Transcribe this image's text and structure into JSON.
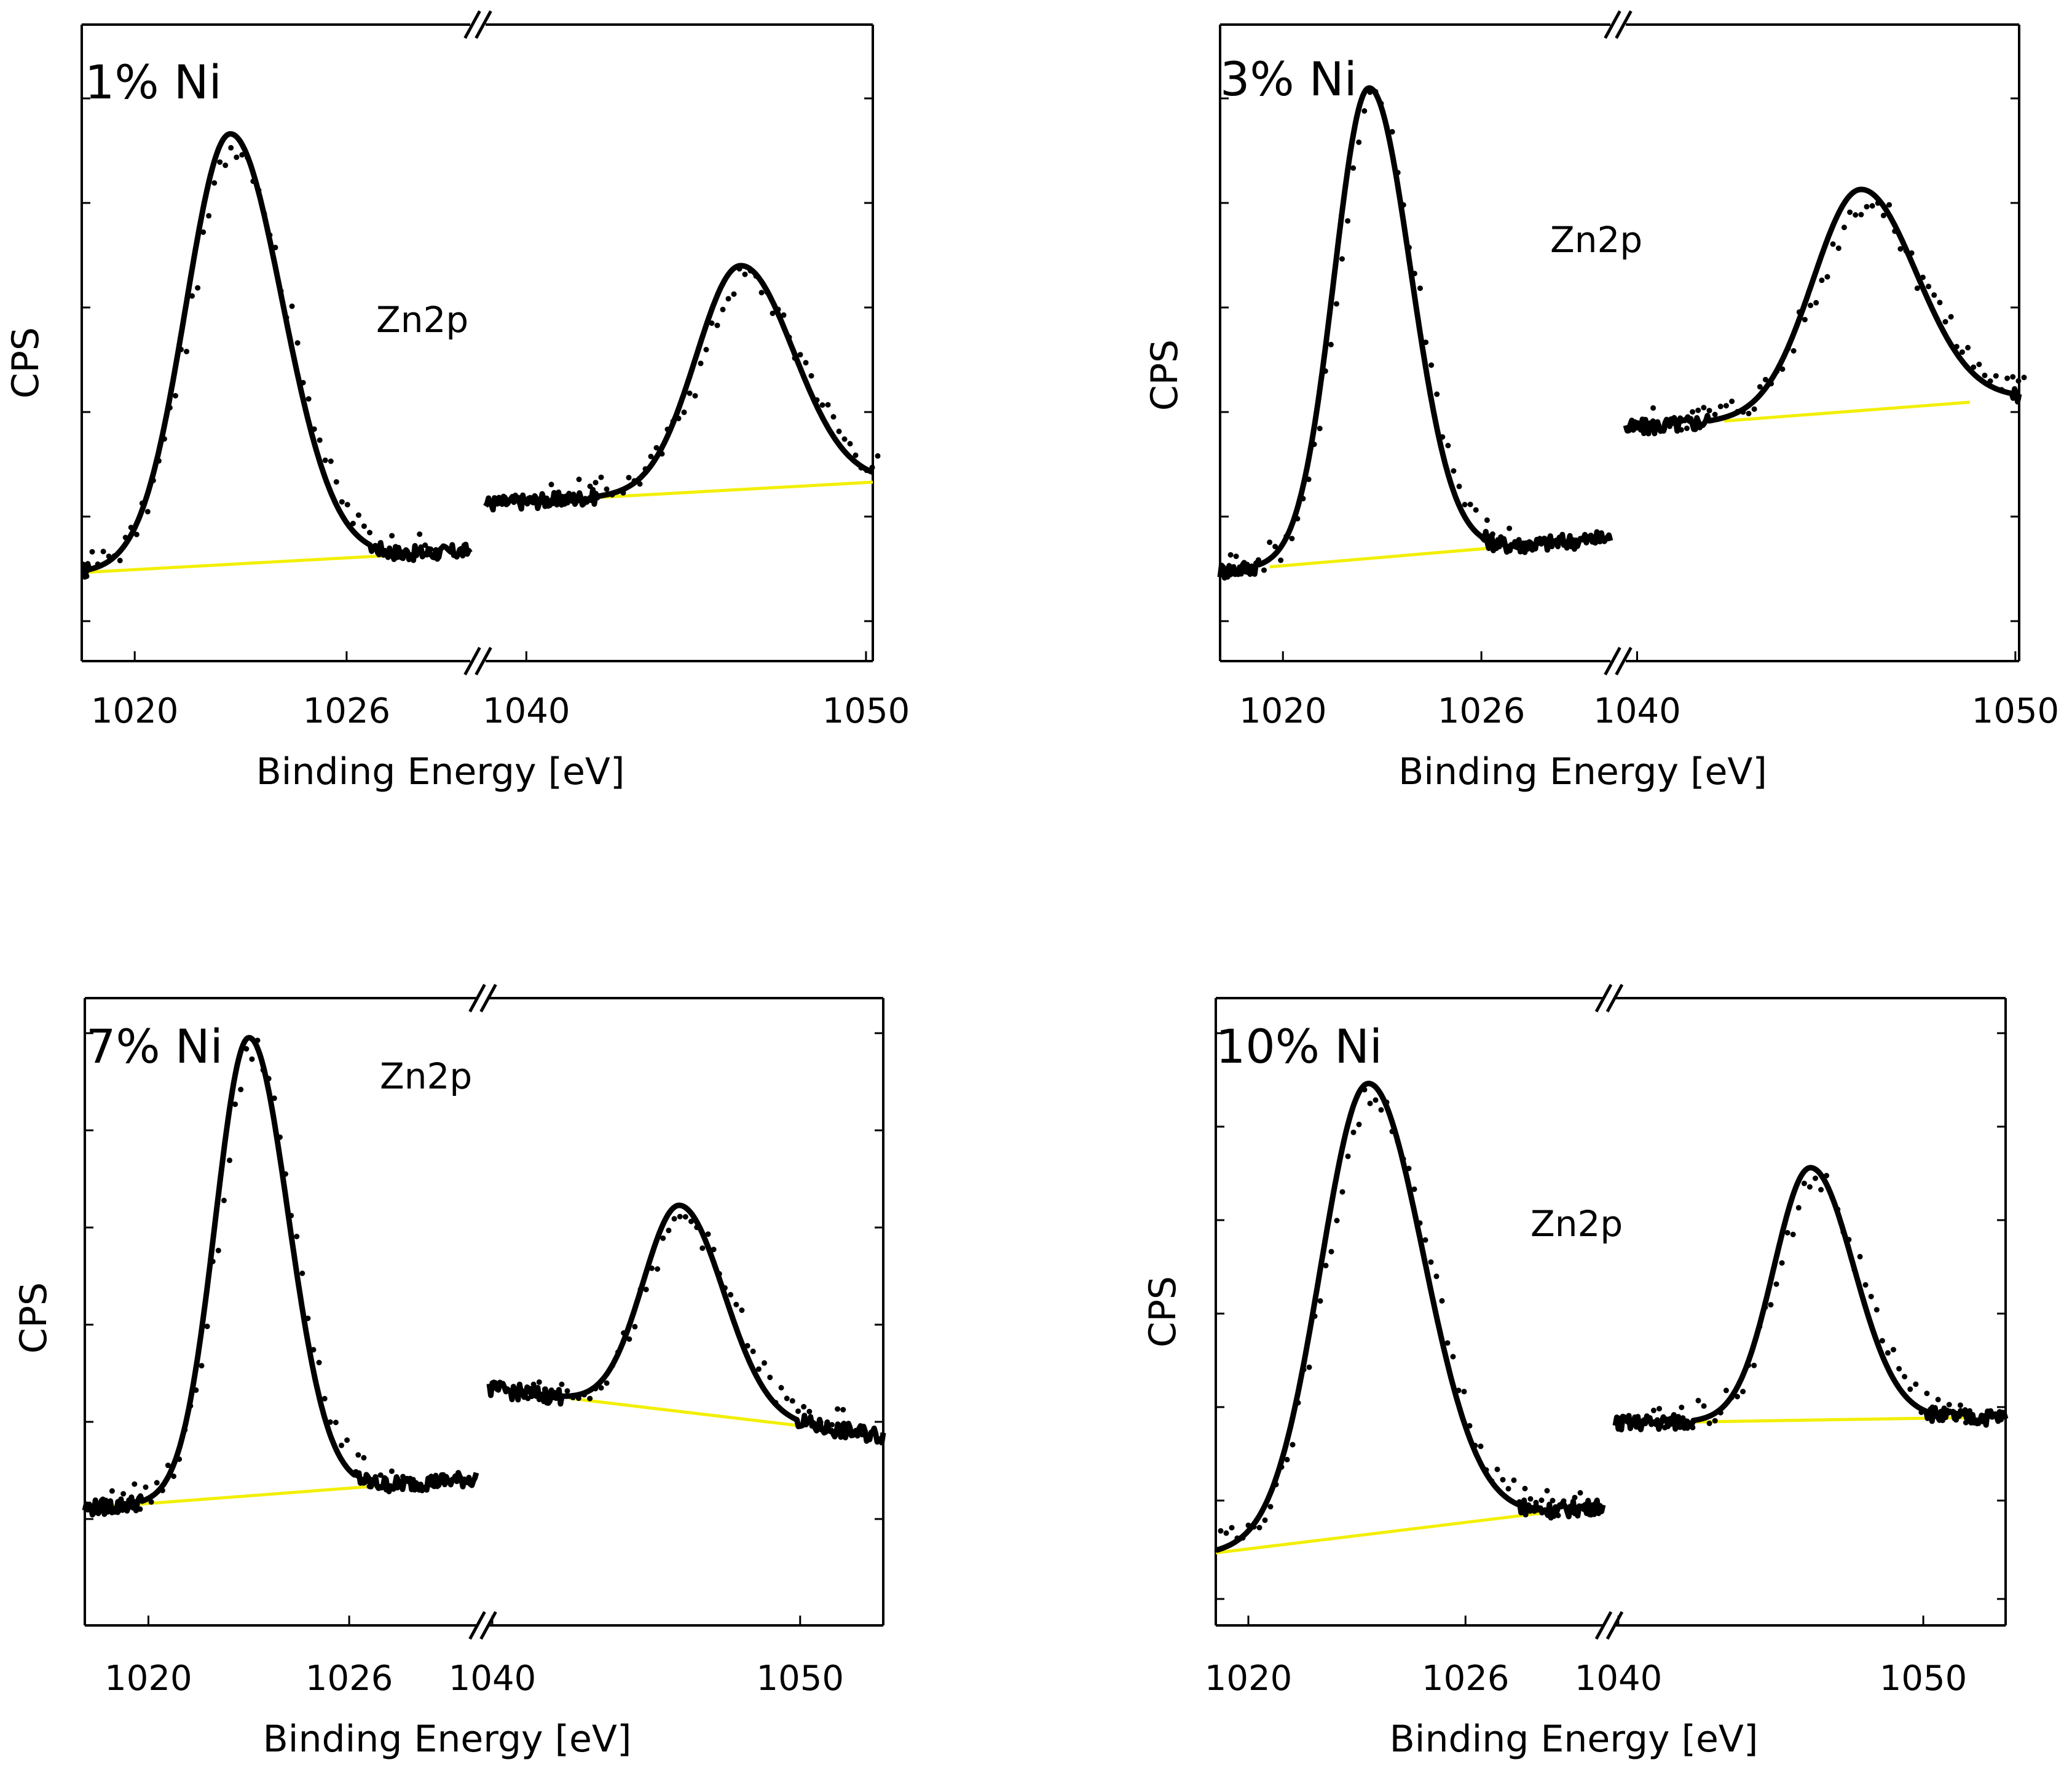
{
  "figure": {
    "colors": {
      "fit": "#000000",
      "raw": "#000000",
      "baseline": "#f2ef00",
      "axis": "#000000"
    },
    "panels": [
      {
        "label": "1% Ni",
        "peak_label": "Zn2p",
        "xlabel": "Binding Energy [eV]",
        "ylabel": "CPS"
      },
      {
        "label": "3% Ni",
        "peak_label": "Zn2p",
        "xlabel": "Binding Energy [eV]",
        "ylabel": "CPS"
      },
      {
        "label": "7% Ni",
        "peak_label": "Zn2p",
        "xlabel": "Binding Energy [eV]",
        "ylabel": "CPS"
      },
      {
        "label": "10% Ni",
        "peak_label": "Zn2p",
        "xlabel": "Binding Energy [eV]",
        "ylabel": "CPS"
      }
    ]
  },
  "chart_data": [
    {
      "type": "line",
      "label": "1% Ni",
      "annotation": "Zn2p",
      "xlabel": "Binding Energy [eV]",
      "ylabel": "CPS",
      "broken_x_axis": true,
      "segments": [
        {
          "xlim": [
            1018.5,
            1029.5
          ],
          "ticks": [
            "1020",
            "1026"
          ],
          "tick_values": [
            1020,
            1026
          ],
          "peak": {
            "center": 1022.7,
            "height": 1.0,
            "width": 1.25,
            "tail": 0.18
          },
          "baseline": [
            [
              1018.5,
              0.02
            ],
            [
              1027.3,
              0.06
            ]
          ],
          "edge_level": 0.0
        },
        {
          "xlim": [
            1038.8,
            1050.2
          ],
          "ticks": [
            "1040",
            "1050"
          ],
          "tick_values": [
            1040,
            1050
          ],
          "peak": {
            "center": 1046.3,
            "height": 0.52,
            "width": 1.3,
            "tail": 0.2
          },
          "baseline": [
            [
              1038.8,
              0.18
            ],
            [
              1050.2,
              0.23
            ]
          ],
          "edge_level": 0.0
        }
      ]
    },
    {
      "type": "line",
      "label": "3% Ni",
      "annotation": "Zn2p",
      "xlabel": "Binding Energy [eV]",
      "ylabel": "CPS",
      "broken_x_axis": true,
      "segments": [
        {
          "xlim": [
            1018.1,
            1029.9
          ],
          "ticks": [
            "1020",
            "1026"
          ],
          "tick_values": [
            1020,
            1026
          ],
          "peak": {
            "center": 1022.6,
            "height": 1.0,
            "width": 1.05,
            "tail": 0.2
          },
          "baseline": [
            [
              1019.6,
              0.05
            ],
            [
              1026.3,
              0.09
            ]
          ],
          "edge_level": 0.0
        },
        {
          "xlim": [
            1039.7,
            1050.1
          ],
          "ticks": [
            "1040",
            "1050"
          ],
          "tick_values": [
            1040,
            1050
          ],
          "peak": {
            "center": 1045.9,
            "height": 0.47,
            "width": 1.25,
            "tail": 0.18
          },
          "baseline": [
            [
              1042.3,
              0.36
            ],
            [
              1048.8,
              0.4
            ]
          ],
          "edge_level": 0.0
        }
      ]
    },
    {
      "type": "line",
      "label": "7% Ni",
      "annotation": "Zn2p",
      "xlabel": "Binding Energy [eV]",
      "ylabel": "CPS",
      "broken_x_axis": true,
      "segments": [
        {
          "xlim": [
            1018.1,
            1029.8
          ],
          "ticks": [
            "1020",
            "1026"
          ],
          "tick_values": [
            1020,
            1026
          ],
          "peak": {
            "center": 1023.0,
            "height": 1.0,
            "width": 1.0,
            "tail": 0.18
          },
          "baseline": [
            [
              1018.1,
              0.01
            ],
            [
              1027.1,
              0.06
            ]
          ],
          "edge_level": 0.0
        },
        {
          "xlim": [
            1039.9,
            1052.7
          ],
          "ticks": [
            "1040",
            "1050"
          ],
          "tick_values": [
            1040,
            1050
          ],
          "peak": {
            "center": 1046.1,
            "height": 0.45,
            "width": 1.2,
            "tail": 0.18
          },
          "baseline": [
            [
              1042.5,
              0.25
            ],
            [
              1050.0,
              0.19
            ]
          ],
          "edge_level": 0.0
        }
      ]
    },
    {
      "type": "line",
      "label": "10% Ni",
      "annotation": "Zn2p",
      "xlabel": "Binding Energy [eV]",
      "ylabel": "CPS",
      "broken_x_axis": true,
      "segments": [
        {
          "xlim": [
            1019.1,
            1029.8
          ],
          "ticks": [
            "1020",
            "1026"
          ],
          "tick_values": [
            1020,
            1026
          ],
          "peak": {
            "center": 1023.3,
            "height": 1.0,
            "width": 1.3,
            "tail": 0.18
          },
          "baseline": [
            [
              1019.1,
              0.0
            ],
            [
              1028.3,
              0.09
            ]
          ],
          "edge_level": 0.0
        },
        {
          "xlim": [
            1039.9,
            1052.7
          ],
          "ticks": [
            "1040",
            "1050"
          ],
          "tick_values": [
            1040,
            1050
          ],
          "peak": {
            "center": 1046.3,
            "height": 0.56,
            "width": 1.2,
            "tail": 0.18
          },
          "baseline": [
            [
              1042.2,
              0.29
            ],
            [
              1051.4,
              0.3
            ]
          ],
          "edge_level": 0.0
        }
      ]
    }
  ]
}
